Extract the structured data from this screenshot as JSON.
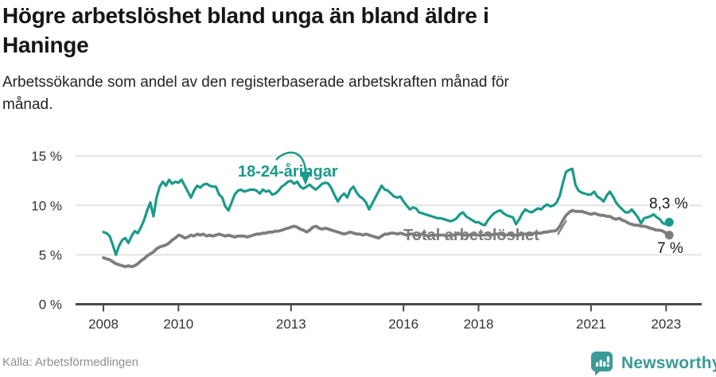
{
  "header": {
    "title_lines": [
      "Högre arbetslöshet bland unga än bland äldre i",
      "Haninge"
    ],
    "subtitle_lines": [
      "Arbetssökande som andel av den registerbaserade arbetskraften månad för",
      "månad."
    ]
  },
  "footer": {
    "source": "Källa: Arbetsförmedlingen",
    "brand": "Newsworthy"
  },
  "colors": {
    "accent_teal": "#1a9a8a",
    "series_gray": "#7d7d7d",
    "axis": "#4a4a4a",
    "grid": "#e3e3e3",
    "brand_teal": "#3b9a96"
  },
  "chart_data": {
    "type": "line",
    "title": "Högre arbetslöshet bland unga än bland äldre i Haninge",
    "subtitle": "Arbetssökande som andel av den registerbaserade arbetskraften månad för månad.",
    "unit": "%",
    "frequency": "monthly",
    "x_start": "2008-01",
    "x_end": "2023-02",
    "xlabel": "",
    "ylabel": "",
    "ylim": [
      0,
      16.5
    ],
    "grid": "horizontal",
    "legend_position": "inline-annotations",
    "yticks": [
      0,
      5,
      10,
      15
    ],
    "ytick_labels": [
      "0 %",
      "5 %",
      "10 %",
      "15 %"
    ],
    "xtick_years": [
      2008,
      2010,
      2013,
      2016,
      2018,
      2021,
      2023
    ],
    "series": [
      {
        "name": "18-24-åringar",
        "color": "#1a9a8a",
        "end_label": "8,3 %",
        "end_value": 8.3,
        "values": [
          7.3,
          7.2,
          6.9,
          6.0,
          5.0,
          5.9,
          6.5,
          6.7,
          6.2,
          6.9,
          7.4,
          7.2,
          7.8,
          8.5,
          9.5,
          10.3,
          8.9,
          10.8,
          11.9,
          12.4,
          12.0,
          12.6,
          12.2,
          12.4,
          12.3,
          12.6,
          12.0,
          11.4,
          10.8,
          11.5,
          12.0,
          11.8,
          12.1,
          12.2,
          12.0,
          11.9,
          11.9,
          11.1,
          10.8,
          9.9,
          9.5,
          10.3,
          11.1,
          11.5,
          11.6,
          11.4,
          11.5,
          11.6,
          11.6,
          11.5,
          11.2,
          11.6,
          11.4,
          11.5,
          11.1,
          11.2,
          11.5,
          11.9,
          12.1,
          12.4,
          12.5,
          12.2,
          12.4,
          11.9,
          11.7,
          11.9,
          12.1,
          11.8,
          11.6,
          11.9,
          12.2,
          12.3,
          12.2,
          11.7,
          11.0,
          10.4,
          10.9,
          11.2,
          10.8,
          11.6,
          11.9,
          11.3,
          10.9,
          10.7,
          10.3,
          9.6,
          10.2,
          10.8,
          11.4,
          12.0,
          11.6,
          11.5,
          11.2,
          10.9,
          10.8,
          10.9,
          10.4,
          10.0,
          9.6,
          9.8,
          9.7,
          9.3,
          9.2,
          9.1,
          9.0,
          8.9,
          8.8,
          8.7,
          8.7,
          8.6,
          8.5,
          8.4,
          8.5,
          8.7,
          9.1,
          9.3,
          8.9,
          8.7,
          8.5,
          8.3,
          8.3,
          8.1,
          8.0,
          8.5,
          8.9,
          9.2,
          9.4,
          9.5,
          9.2,
          9.0,
          8.9,
          8.8,
          8.1,
          8.6,
          9.2,
          9.6,
          9.4,
          9.3,
          9.5,
          9.7,
          9.6,
          9.9,
          10.1,
          9.9,
          10.0,
          10.3,
          11.0,
          12.3,
          13.4,
          13.6,
          13.7,
          12.1,
          11.5,
          11.3,
          11.2,
          11.1,
          11.1,
          11.4,
          10.9,
          10.7,
          10.4,
          11.0,
          11.4,
          10.9,
          10.3,
          9.9,
          9.6,
          9.3,
          9.3,
          9.6,
          9.2,
          8.8,
          8.2,
          8.7,
          8.8,
          8.9,
          9.1,
          8.8,
          8.6,
          8.2,
          8.1,
          8.3
        ]
      },
      {
        "name": "Total arbetslöshet",
        "color": "#7d7d7d",
        "end_label": "7 %",
        "end_value": 7.0,
        "values": [
          4.7,
          4.6,
          4.5,
          4.3,
          4.1,
          4.0,
          3.9,
          3.8,
          3.9,
          3.8,
          3.9,
          4.1,
          4.4,
          4.6,
          4.9,
          5.1,
          5.3,
          5.6,
          5.8,
          5.9,
          6.0,
          6.2,
          6.5,
          6.7,
          7.0,
          6.9,
          6.7,
          6.8,
          7.0,
          6.9,
          7.1,
          7.0,
          7.1,
          6.9,
          7.0,
          6.9,
          7.0,
          7.1,
          7.0,
          6.9,
          7.0,
          6.9,
          6.8,
          6.9,
          6.9,
          6.9,
          6.8,
          6.9,
          7.0,
          7.1,
          7.1,
          7.2,
          7.2,
          7.3,
          7.3,
          7.4,
          7.4,
          7.5,
          7.6,
          7.7,
          7.8,
          7.9,
          7.8,
          7.6,
          7.5,
          7.3,
          7.5,
          7.8,
          7.9,
          7.7,
          7.6,
          7.7,
          7.6,
          7.5,
          7.4,
          7.3,
          7.2,
          7.1,
          7.2,
          7.3,
          7.2,
          7.1,
          7.1,
          7.0,
          7.1,
          7.0,
          6.9,
          6.8,
          6.7,
          6.9,
          7.1,
          7.1,
          7.2,
          7.2,
          7.1,
          7.2,
          7.1,
          7.0,
          7.1,
          7.1,
          7.0,
          7.0,
          7.1,
          7.0,
          6.9,
          7.0,
          7.0,
          7.0,
          7.0,
          7.0,
          6.9,
          7.0,
          7.0,
          7.1,
          7.1,
          7.0,
          7.0,
          7.0,
          7.1,
          7.0,
          7.0,
          7.0,
          7.0,
          7.1,
          7.0,
          7.1,
          7.1,
          7.1,
          7.0,
          7.0,
          7.1,
          7.0,
          7.0,
          7.0,
          7.1,
          7.1,
          7.1,
          7.1,
          7.2,
          7.2,
          7.2,
          7.3,
          7.3,
          7.4,
          7.4,
          7.5,
          7.9,
          8.5,
          9.0,
          9.3,
          9.5,
          9.4,
          9.4,
          9.4,
          9.3,
          9.2,
          9.1,
          9.2,
          9.1,
          9.0,
          9.0,
          8.9,
          8.9,
          8.7,
          8.6,
          8.7,
          8.5,
          8.4,
          8.2,
          8.1,
          8.0,
          8.0,
          7.9,
          7.9,
          7.8,
          7.7,
          7.6,
          7.5,
          7.5,
          7.4,
          7.2,
          7.0
        ]
      }
    ]
  }
}
